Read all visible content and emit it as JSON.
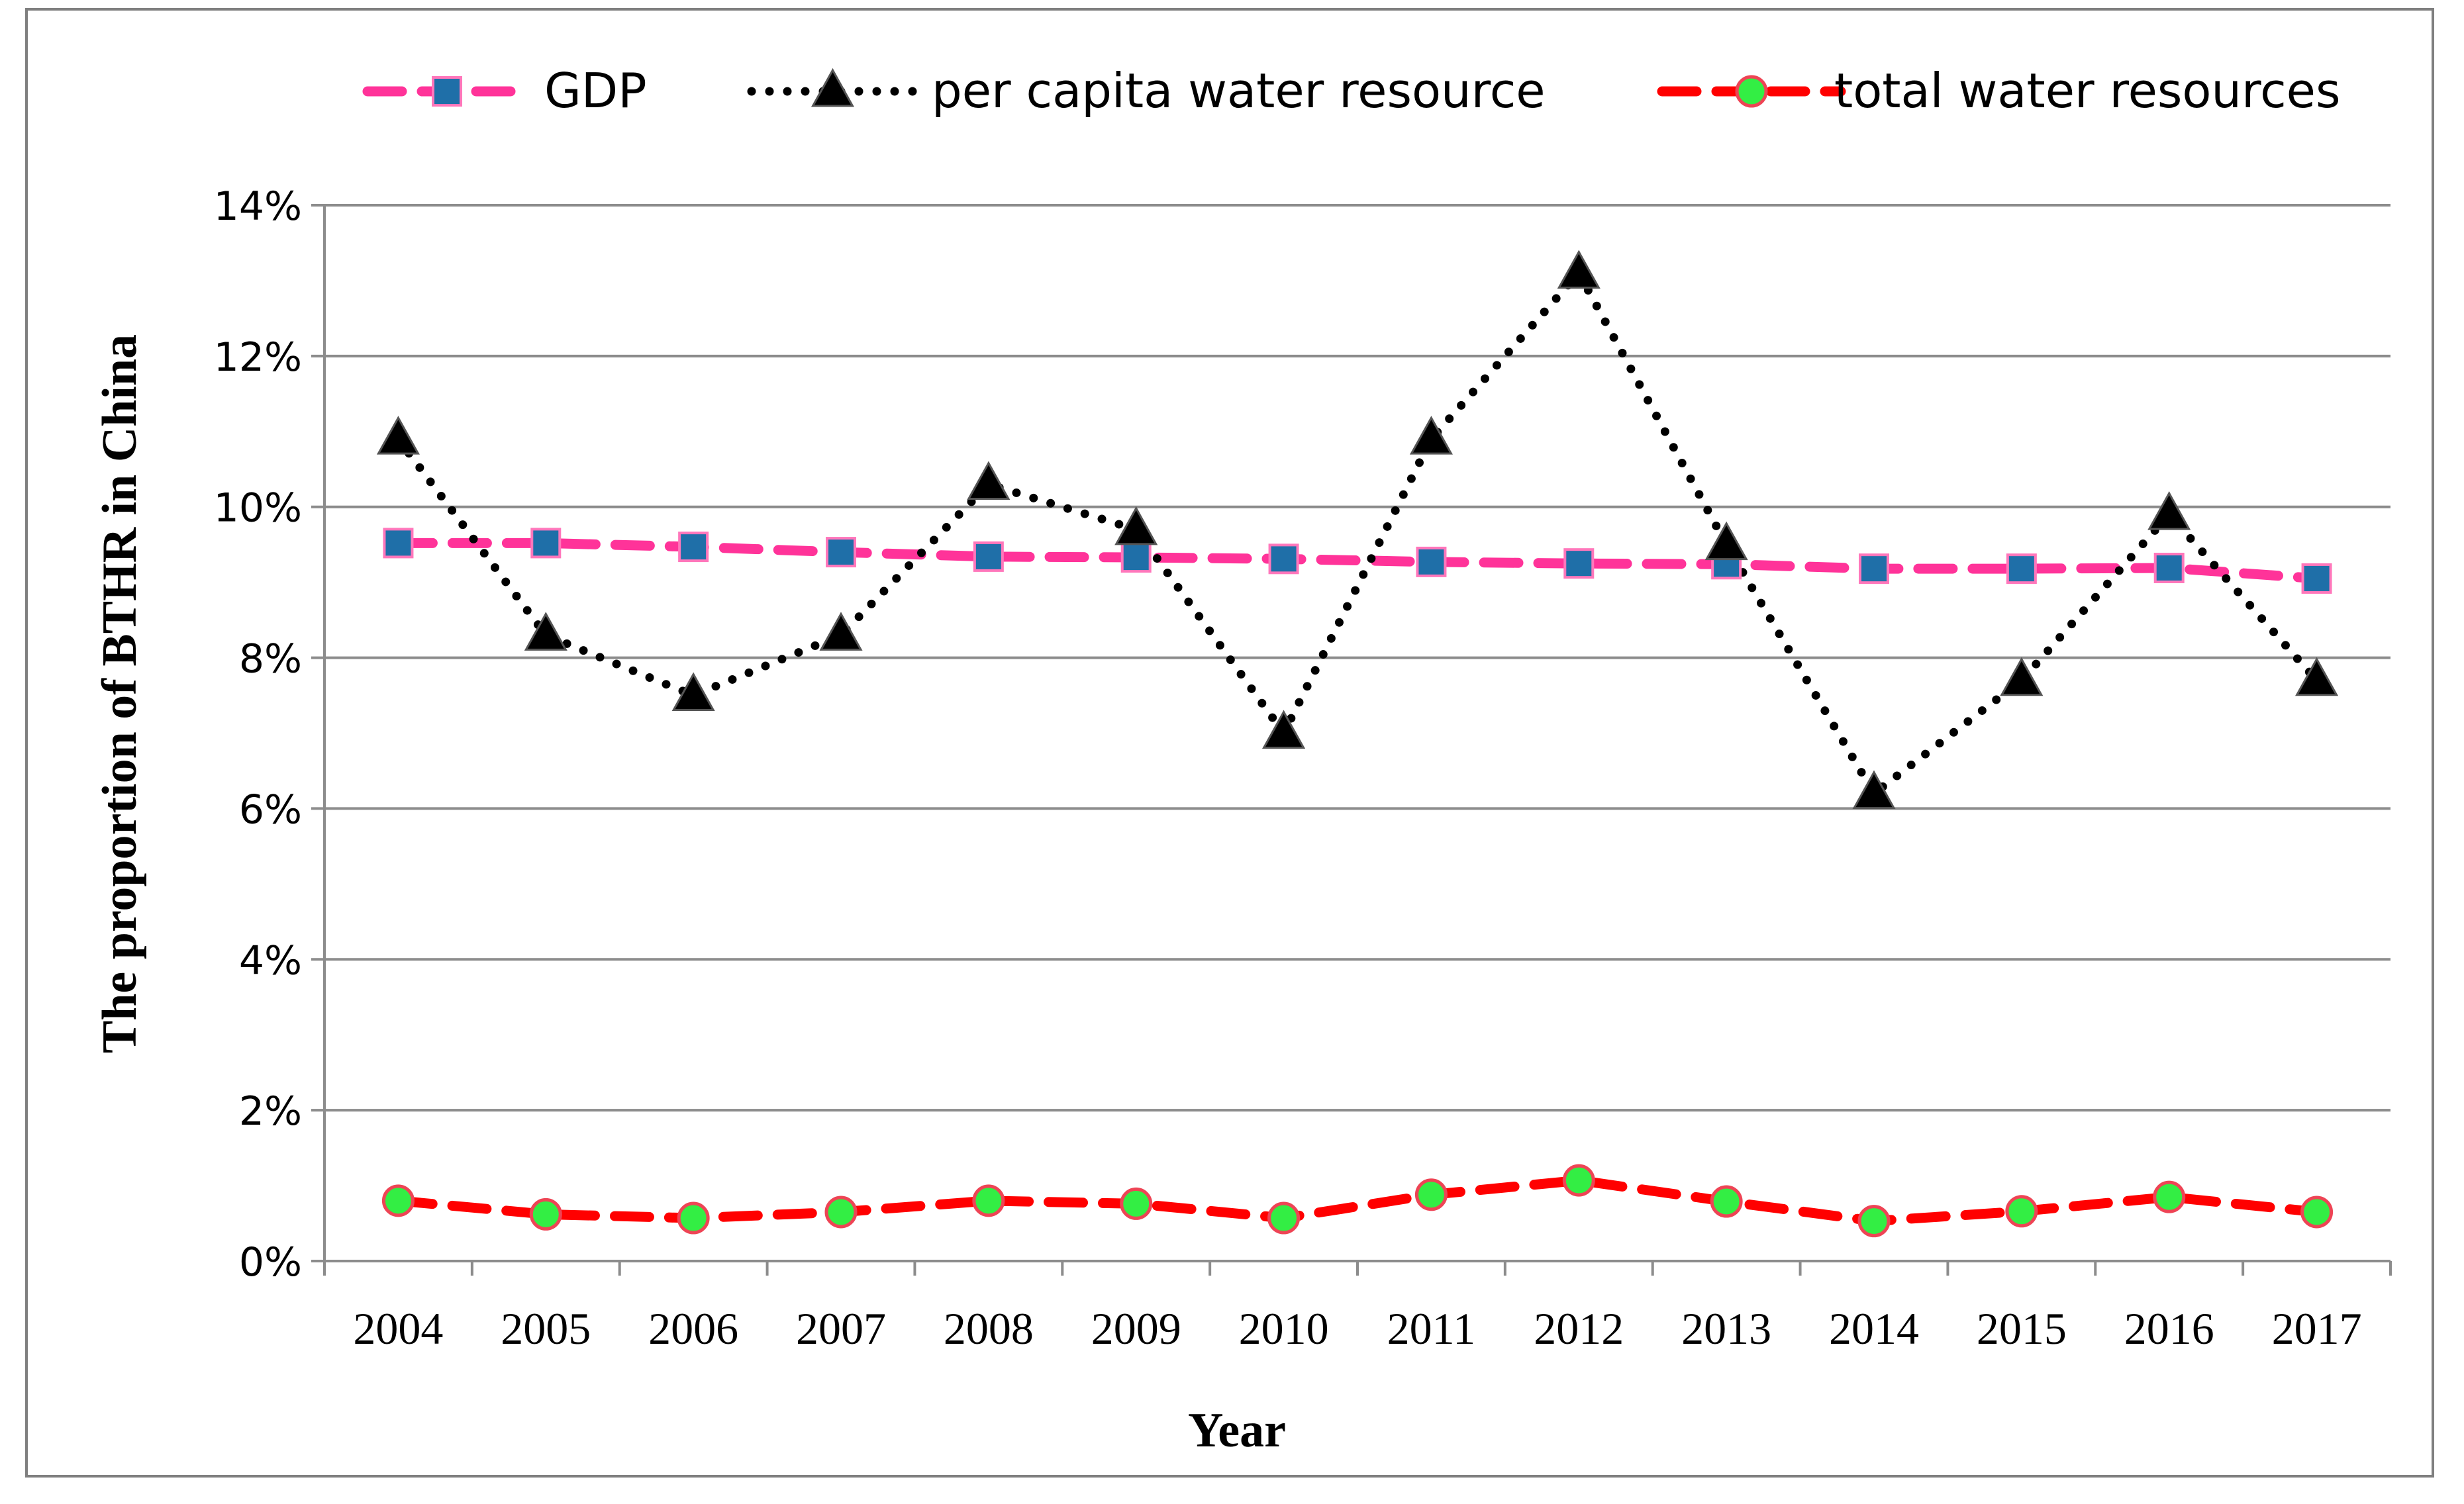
{
  "chart_data": {
    "type": "line",
    "xlabel": "Year",
    "ylabel": "The proportion of BTHR in China",
    "ylim": [
      0,
      14
    ],
    "y_unit": "%",
    "y_ticks": [
      "0%",
      "2%",
      "4%",
      "6%",
      "8%",
      "10%",
      "12%",
      "14%"
    ],
    "grid": true,
    "legend_position": "top",
    "categories": [
      "2004",
      "2005",
      "2006",
      "2007",
      "2008",
      "2009",
      "2010",
      "2011",
      "2012",
      "2013",
      "2014",
      "2015",
      "2016",
      "2017"
    ],
    "series": [
      {
        "name": "GDP",
        "line_color": "#ff3399",
        "marker": "square",
        "marker_color": "#1f6fa8",
        "line_style": "dashed",
        "values": [
          9.52,
          9.52,
          9.47,
          9.4,
          9.34,
          9.33,
          9.31,
          9.27,
          9.25,
          9.24,
          9.18,
          9.18,
          9.19,
          9.05
        ]
      },
      {
        "name": "per capita water resource",
        "line_color": "#000000",
        "marker": "triangle",
        "marker_color": "#000000",
        "line_style": "dotted",
        "values": [
          10.9,
          8.3,
          7.5,
          8.3,
          10.3,
          9.7,
          7.0,
          10.9,
          13.1,
          9.5,
          6.2,
          7.7,
          9.9,
          7.7
        ]
      },
      {
        "name": "total water resources",
        "line_color": "#ff0000",
        "marker": "circle",
        "marker_color": "#33ee44",
        "line_style": "dashed",
        "values": [
          0.8,
          0.62,
          0.57,
          0.65,
          0.8,
          0.76,
          0.57,
          0.88,
          1.07,
          0.79,
          0.53,
          0.66,
          0.85,
          0.65
        ]
      }
    ]
  }
}
